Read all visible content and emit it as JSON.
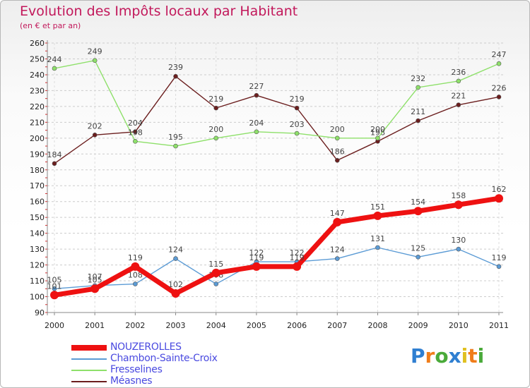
{
  "header": {
    "title": "Evolution des Impôts locaux par Habitant",
    "subtitle": "(en € et par an)"
  },
  "logo": {
    "text": "Proxiti",
    "letters": [
      "P",
      "r",
      "o",
      "x",
      "i",
      "t",
      "i"
    ],
    "colors": [
      "#2f7fd1",
      "#f07d1a",
      "#4aaa3a",
      "#2f7fd1",
      "#e0c020",
      "#f07d1a",
      "#4aaa3a"
    ]
  },
  "chart_data": {
    "type": "line",
    "title": "Evolution des Impôts locaux par Habitant",
    "subtitle": "(en € et par an)",
    "x": [
      "2000",
      "2001",
      "2002",
      "2003",
      "2004",
      "2005",
      "2006",
      "2007",
      "2008",
      "2009",
      "2010",
      "2011"
    ],
    "ylim": [
      90,
      260
    ],
    "yticks": [
      90,
      100,
      110,
      120,
      130,
      140,
      150,
      160,
      170,
      180,
      190,
      200,
      210,
      220,
      230,
      240,
      250,
      260
    ],
    "grid": "horizontal dashed",
    "legend_position": "bottom-left",
    "series": [
      {
        "name": "NOUZEROLLES",
        "color": "#ee1111",
        "values": [
          101,
          105,
          119,
          102,
          115,
          119,
          119,
          147,
          151,
          154,
          158,
          162
        ]
      },
      {
        "name": "Chambon-Sainte-Croix",
        "color": "#5b9bd5",
        "values": [
          105,
          107,
          108,
          124,
          108,
          122,
          122,
          124,
          131,
          125,
          130,
          119
        ]
      },
      {
        "name": "Fresselines",
        "color": "#8ee06a",
        "values": [
          244,
          249,
          198,
          195,
          200,
          204,
          203,
          200,
          200,
          232,
          236,
          247
        ]
      },
      {
        "name": "Méasnes",
        "color": "#6b1e1e",
        "values": [
          184,
          202,
          204,
          239,
          219,
          227,
          219,
          186,
          198,
          211,
          221,
          226
        ]
      }
    ]
  }
}
